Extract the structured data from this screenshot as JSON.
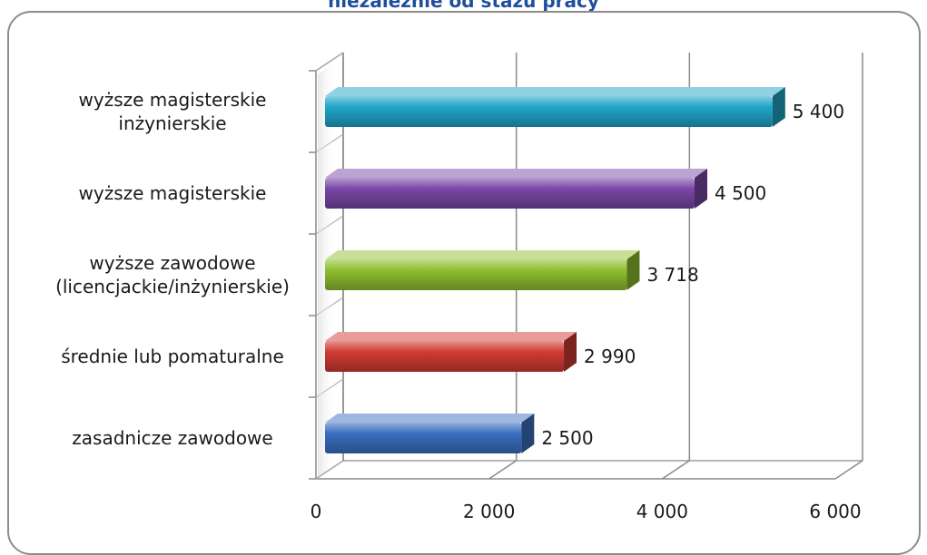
{
  "chart_data": {
    "type": "bar",
    "orientation": "horizontal",
    "title": "niezależnie od stażu pracy",
    "categories": [
      [
        "zasadnicze zawodowe"
      ],
      [
        "średnie lub pomaturalne"
      ],
      [
        "wyższe zawodowe",
        "(licencjackie/inżynierskie)"
      ],
      [
        "wyższe magisterskie"
      ],
      [
        "wyższe magisterskie",
        "inżynierskie"
      ]
    ],
    "values": [
      2500,
      2990,
      3718,
      4500,
      5400
    ],
    "value_labels": [
      "2 500",
      "2 990",
      "3 718",
      "4 500",
      "5 400"
    ],
    "bar_colors": [
      "#3a6fc0",
      "#d13b33",
      "#8fbf2f",
      "#7a47a6",
      "#1fa5c9"
    ],
    "xlim": [
      0,
      6000
    ],
    "xticks": [
      0,
      2000,
      4000,
      6000
    ],
    "xtick_labels": [
      "0",
      "2 000",
      "4 000",
      "6 000"
    ],
    "grid": true,
    "legend": "none"
  }
}
